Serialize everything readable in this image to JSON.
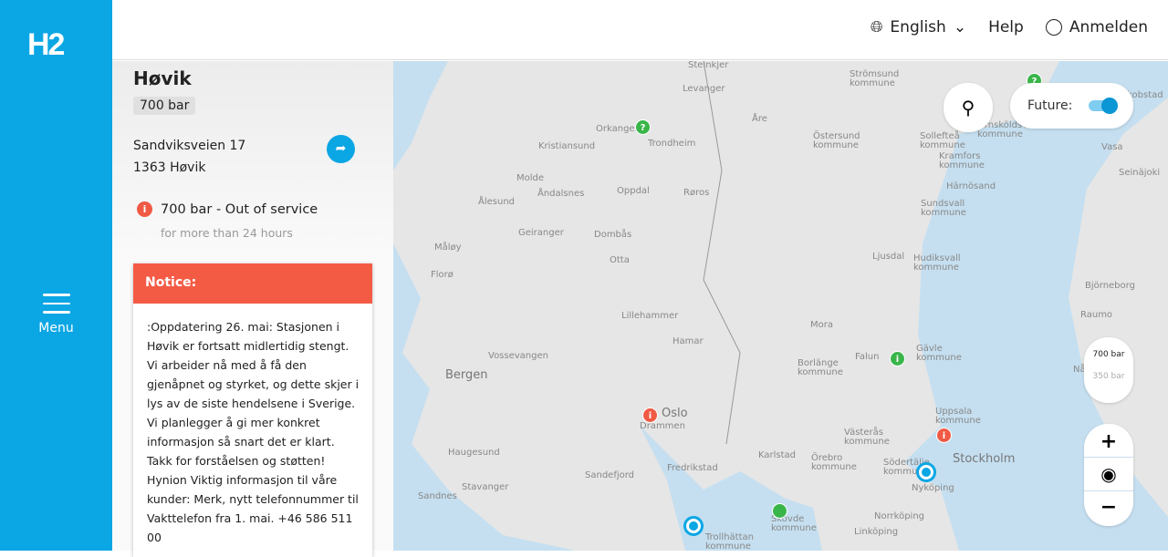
{
  "logo": "H2",
  "menu_label": "Menu",
  "nav": {
    "language": "English",
    "help": "Help",
    "login": "Anmelden"
  },
  "station": {
    "name": "Høvik",
    "pressure_badge": "700 bar",
    "address_line1": "Sandviksveien 17",
    "address_line2": "1363 Høvik",
    "status": "700 bar - Out of service",
    "status_sub": "for more than 24 hours",
    "notice_title": "Notice:",
    "notice_body": ":Oppdatering 26. mai: Stasjonen i Høvik er fortsatt midlertidig stengt. Vi arbeider nå med å få den gjenåpnet og styrket, og dette skjer i lys av de siste hendelsene i Sverige. Vi planlegger å gi mer konkret informasjon så snart det er klart. Takk for forståelsen og støtten! Hynion Viktig informasjon til våre kunder: Merk, nytt telefonnummer til Vakttelefon fra 1. mai. +46 586 511 00"
  },
  "map": {
    "future_label": "Future:",
    "future_on": true,
    "pressure_700": "700 bar",
    "pressure_350": "350 bar",
    "zoom_in": "+",
    "zoom_out": "−",
    "labels": [
      "Steinkjer",
      "Levanger",
      "Trondheim",
      "Orkanger",
      "Kristiansund",
      "Åre",
      "Strömsund kommune",
      "Östersund kommune",
      "Sollefteå kommune",
      "Kramfors kommune",
      "Örnsköldsvik kommune",
      "Härnösand",
      "Sundsvall kommune",
      "Molde",
      "Åndalsnes",
      "Oppdal",
      "Røros",
      "Ålesund",
      "Geiranger",
      "Dombås",
      "Otta",
      "Måløy",
      "Florø",
      "Ljusdal",
      "Hudiksvall kommune",
      "Lillehammer",
      "Hamar",
      "Mora",
      "Bergen",
      "Vossevangen",
      "Falun",
      "Borlänge kommune",
      "Gävle kommune",
      "Oslo",
      "Drammen",
      "Uppsala kommune",
      "Västerås kommune",
      "Örebro kommune",
      "Stockholm",
      "Södertälje kommune",
      "Haugesund",
      "Sandefjord",
      "Fredrikstad",
      "Karlstad",
      "Nyköping",
      "Norrköping",
      "Linköping",
      "Stavanger",
      "Sandnes",
      "Skövde kommune",
      "Trollhättan kommune",
      "Vasa",
      "Jakobstad",
      "Seinäjoki",
      "Björneborg",
      "Raumo",
      "Nådendal"
    ]
  }
}
